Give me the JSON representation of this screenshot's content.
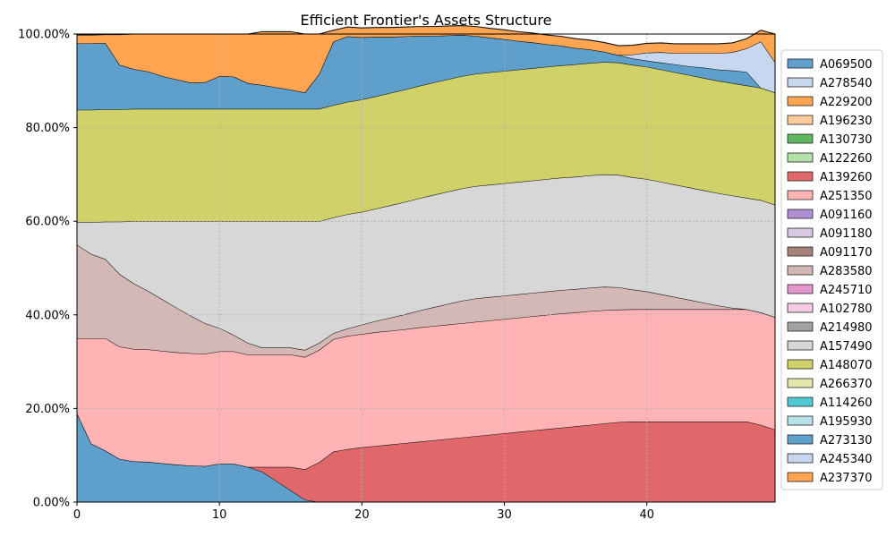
{
  "chart_data": {
    "type": "area",
    "stacked": true,
    "title": "Efficient Frontier's Assets Structure",
    "xlabel": "",
    "ylabel": "",
    "xlim": [
      0,
      49
    ],
    "ylim": [
      0,
      100
    ],
    "x_ticks": [
      0,
      10,
      20,
      30,
      40
    ],
    "y_ticks": [
      0,
      20,
      40,
      60,
      80,
      100
    ],
    "y_tick_labels": [
      "0.00%",
      "20.00%",
      "40.00%",
      "60.00%",
      "80.00%",
      "100.00%"
    ],
    "grid": true,
    "legend_position": "right",
    "x": [
      0,
      1,
      2,
      3,
      4,
      5,
      6,
      7,
      8,
      9,
      10,
      11,
      12,
      13,
      14,
      15,
      16,
      17,
      18,
      19,
      20,
      21,
      22,
      23,
      24,
      25,
      26,
      27,
      28,
      29,
      30,
      31,
      32,
      33,
      34,
      35,
      36,
      37,
      38,
      39,
      40,
      41,
      42,
      43,
      44,
      45,
      46,
      47,
      48,
      49
    ],
    "legend": [
      "A069500",
      "A278540",
      "A229200",
      "A196230",
      "A130730",
      "A122260",
      "A139260",
      "A251350",
      "A091160",
      "A091180",
      "A091170",
      "A283580",
      "A245710",
      "A102780",
      "A214980",
      "A157490",
      "A148070",
      "A266370",
      "A114260",
      "A195930",
      "A273130",
      "A245340",
      "A237370"
    ],
    "series": [
      {
        "name": "A069500",
        "color": "#5f9fcc",
        "values": [
          19,
          12.5,
          11,
          9.2,
          8.7,
          8.6,
          8.3,
          8,
          7.8,
          7.7,
          8.2,
          8.2,
          7.5,
          6.5,
          4.5,
          2.5,
          0.5,
          0,
          0,
          0,
          0,
          0,
          0,
          0,
          0,
          0,
          0,
          0,
          0,
          0,
          0,
          0,
          0,
          0,
          0,
          0,
          0,
          0,
          0,
          0,
          0,
          0,
          0,
          0,
          0,
          0,
          0,
          0,
          0,
          0
        ]
      },
      {
        "name": "A139260",
        "color": "#e0686a",
        "values": [
          0,
          0,
          0,
          0,
          0,
          0,
          0,
          0,
          0,
          0,
          0,
          0,
          0,
          1,
          3,
          5,
          6.5,
          8.5,
          10.8,
          11.3,
          11.7,
          12,
          12.3,
          12.6,
          12.9,
          13.2,
          13.5,
          13.8,
          14.1,
          14.4,
          14.7,
          15,
          15.3,
          15.6,
          15.9,
          16.2,
          16.5,
          16.8,
          17.1,
          17.2,
          17.2,
          17.2,
          17.2,
          17.2,
          17.2,
          17.2,
          17.2,
          17.2,
          16.5,
          15.5
        ]
      },
      {
        "name": "A251350",
        "color": "#ffb3b4",
        "values": [
          16,
          22.5,
          24,
          24,
          24,
          24,
          24,
          24,
          24,
          24,
          24,
          24,
          24,
          24,
          24,
          24,
          24,
          24,
          24,
          24.2,
          24.2,
          24.3,
          24.3,
          24.3,
          24.4,
          24.4,
          24.4,
          24.4,
          24.4,
          24.4,
          24.4,
          24.4,
          24.4,
          24.4,
          24.4,
          24.3,
          24.3,
          24.2,
          24,
          24,
          24,
          24,
          24,
          24,
          24,
          24,
          24,
          24,
          24,
          24
        ]
      },
      {
        "name": "A283580",
        "color": "#d4b8b5",
        "values": [
          20,
          18,
          16.9,
          15.5,
          14,
          12.5,
          11,
          9.5,
          8,
          6.5,
          5,
          3.5,
          2.5,
          1.5,
          1.5,
          1.5,
          1.5,
          1.5,
          1.3,
          1.6,
          2,
          2.4,
          2.8,
          3.2,
          3.6,
          4,
          4.4,
          4.8,
          5,
          5,
          5,
          5,
          5,
          5,
          5,
          5,
          5,
          5,
          4.8,
          4.2,
          3.8,
          3.2,
          2.6,
          2,
          1.4,
          0.8,
          0.3,
          0,
          0,
          0
        ]
      },
      {
        "name": "A157490",
        "color": "#d7d7d7",
        "values": [
          4.8,
          6.8,
          8,
          11.2,
          13.3,
          14.9,
          16.7,
          18.5,
          20.2,
          21.8,
          22.8,
          24.3,
          26,
          27,
          27,
          27,
          27.5,
          26,
          24.7,
          24.4,
          24.1,
          24,
          24,
          24,
          24,
          24,
          24,
          24,
          24,
          24,
          24,
          24,
          24,
          24,
          24,
          24,
          24,
          24,
          24,
          24,
          24,
          24,
          24,
          24,
          24,
          24,
          24,
          23.8,
          24,
          24
        ]
      },
      {
        "name": "A148070",
        "color": "#d1d16a",
        "values": [
          24,
          24,
          24,
          24,
          24,
          24,
          24,
          24,
          24,
          24,
          24,
          24,
          24,
          24,
          24,
          24,
          24,
          24,
          24,
          24,
          24,
          24,
          24,
          24,
          24,
          24,
          24,
          24,
          24,
          24,
          24,
          24,
          24,
          24,
          24,
          24,
          24,
          24,
          24,
          24,
          24,
          24,
          24,
          24,
          24,
          24,
          24,
          24,
          24,
          24
        ]
      },
      {
        "name": "A273130",
        "color": "#5f9fcc",
        "values": [
          14.2,
          14.2,
          14.2,
          9.5,
          8.5,
          8,
          7,
          6.3,
          5.6,
          5.7,
          7,
          6.9,
          5.5,
          5.1,
          4.6,
          4.1,
          3.5,
          7.5,
          13.6,
          14,
          13.3,
          12.7,
          12,
          11.4,
          10.7,
          10,
          9.4,
          8.8,
          8.1,
          7.4,
          6.8,
          6.1,
          5.5,
          4.8,
          4.2,
          3.5,
          2.9,
          2.2,
          1.6,
          1.4,
          1.3,
          1.5,
          1.7,
          1.9,
          2.2,
          2.4,
          2.7,
          2.9,
          0,
          0
        ]
      },
      {
        "name": "A245340",
        "color": "#c6d7ef",
        "values": [
          0,
          0,
          0,
          0,
          0,
          0,
          0,
          0,
          0,
          0,
          0,
          0,
          0,
          0,
          0,
          0,
          0,
          0,
          0,
          0,
          0,
          0,
          0,
          0,
          0,
          0,
          0,
          0,
          0,
          0,
          0,
          0,
          0,
          0,
          0,
          0,
          0,
          0,
          0,
          0.8,
          1.7,
          2.2,
          2.4,
          2.8,
          3.1,
          3.5,
          3.9,
          5,
          9.9,
          6.5
        ]
      },
      {
        "name": "A237370",
        "color": "#ffa552",
        "values": [
          1.8,
          1.8,
          1.8,
          6.5,
          7.5,
          8,
          9,
          9.7,
          10.4,
          10.3,
          9,
          9.1,
          10.5,
          11.4,
          11.9,
          12.4,
          12.5,
          8.5,
          2.4,
          2,
          2,
          2,
          2,
          2,
          2,
          2,
          2,
          2,
          2,
          2,
          2,
          2,
          2,
          2,
          2,
          2,
          2,
          2,
          2,
          2,
          2,
          2,
          2,
          2,
          2,
          2,
          2,
          2.1,
          2.4,
          6
        ]
      }
    ]
  },
  "legend_colors": [
    "#5f9fcc",
    "#c6d7ef",
    "#ffa552",
    "#ffcc99",
    "#5fb761",
    "#b3e2a8",
    "#e0686a",
    "#ffb3b4",
    "#ad8fd2",
    "#d9c9e2",
    "#a58378",
    "#d4b8b5",
    "#e597cf",
    "#f8cbe3",
    "#a2a2a2",
    "#d7d7d7",
    "#d1d16a",
    "#e2e6aa",
    "#4fc9d2",
    "#b7e1e8",
    "#5f9fcc",
    "#c6d7ef",
    "#ffa552"
  ]
}
